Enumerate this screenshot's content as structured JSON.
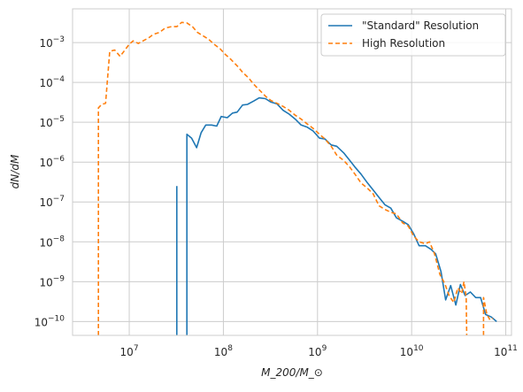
{
  "chart_data": {
    "type": "line",
    "title": "",
    "xlabel": "M_200/M_⊙",
    "ylabel": "dN/dM",
    "xscale": "log",
    "yscale": "log",
    "xlim": [
      2500000.0,
      115000000000.0
    ],
    "ylim": [
      4.5e-11,
      0.007
    ],
    "grid": true,
    "legend_position": "upper right",
    "x_ticks": [
      {
        "value": 10000000.0,
        "base": "10",
        "exp": "7"
      },
      {
        "value": 100000000.0,
        "base": "10",
        "exp": "8"
      },
      {
        "value": 1000000000.0,
        "base": "10",
        "exp": "9"
      },
      {
        "value": 10000000000.0,
        "base": "10",
        "exp": "10"
      },
      {
        "value": 100000000000.0,
        "base": "10",
        "exp": "11"
      }
    ],
    "y_ticks": [
      {
        "value": 1e-10,
        "base": "10",
        "exp": "−10"
      },
      {
        "value": 1e-09,
        "base": "10",
        "exp": "−9"
      },
      {
        "value": 1e-08,
        "base": "10",
        "exp": "−8"
      },
      {
        "value": 1e-07,
        "base": "10",
        "exp": "−7"
      },
      {
        "value": 1e-06,
        "base": "10",
        "exp": "−6"
      },
      {
        "value": 1e-05,
        "base": "10",
        "exp": "−5"
      },
      {
        "value": 0.0001,
        "base": "10",
        "exp": "−4"
      },
      {
        "value": 0.001,
        "base": "10",
        "exp": "−3"
      }
    ],
    "series": [
      {
        "name": "\"Standard\" Resolution",
        "color": "#1f77b4",
        "style": "solid",
        "segments": [
          [
            [
              32000000.0,
              4.5e-11
            ],
            [
              32000000.0,
              2.5e-07
            ]
          ],
          [
            [
              41000000.0,
              4.5e-11
            ],
            [
              41000000.0,
              5e-06
            ],
            [
              46000000.0,
              4e-06
            ],
            [
              52000000.0,
              2.3e-06
            ],
            [
              58000000.0,
              5.5e-06
            ],
            [
              65000000.0,
              8.5e-06
            ],
            [
              75000000.0,
              8.5e-06
            ],
            [
              85000000.0,
              8e-06
            ],
            [
              95000000.0,
              1.4e-05
            ],
            [
              110000000.0,
              1.3e-05
            ],
            [
              125000000.0,
              1.7e-05
            ],
            [
              140000000.0,
              1.8e-05
            ],
            [
              160000000.0,
              2.7e-05
            ],
            [
              180000000.0,
              2.8e-05
            ],
            [
              210000000.0,
              3.4e-05
            ],
            [
              240000000.0,
              4.1e-05
            ],
            [
              280000000.0,
              3.9e-05
            ],
            [
              320000000.0,
              3.2e-05
            ],
            [
              370000000.0,
              2.9e-05
            ],
            [
              430000000.0,
              2e-05
            ],
            [
              500000000.0,
              1.6e-05
            ],
            [
              580000000.0,
              1.2e-05
            ],
            [
              670000000.0,
              8.5e-06
            ],
            [
              780000000.0,
              7.5e-06
            ],
            [
              900000000.0,
              6e-06
            ],
            [
              1050000000.0,
              4e-06
            ],
            [
              1200000000.0,
              3.8e-06
            ],
            [
              1400000000.0,
              2.7e-06
            ],
            [
              1600000000.0,
              2.5e-06
            ],
            [
              1900000000.0,
              1.7e-06
            ],
            [
              2200000000.0,
              1.1e-06
            ],
            [
              2500000000.0,
              7.5e-07
            ],
            [
              2900000000.0,
              5e-07
            ],
            [
              3400000000.0,
              3e-07
            ],
            [
              3900000000.0,
              2e-07
            ],
            [
              4500000000.0,
              1.3e-07
            ],
            [
              5200000000.0,
              8.5e-08
            ],
            [
              6000000000.0,
              7e-08
            ],
            [
              6900000000.0,
              4e-08
            ],
            [
              8000000000.0,
              3.3e-08
            ],
            [
              9200000000.0,
              2.7e-08
            ],
            [
              10500000000.0,
              1.6e-08
            ],
            [
              12000000000.0,
              8e-09
            ],
            [
              14000000000.0,
              8e-09
            ],
            [
              16000000000.0,
              6.5e-09
            ],
            [
              18000000000.0,
              5e-09
            ],
            [
              20500000000.0,
              1.8e-09
            ],
            [
              23000000000.0,
              3.5e-10
            ],
            [
              26000000000.0,
              8e-10
            ],
            [
              29500000000.0,
              2.6e-10
            ],
            [
              33000000000.0,
              8.5e-10
            ],
            [
              37000000000.0,
              4.5e-10
            ],
            [
              42000000000.0,
              5.5e-10
            ],
            [
              48000000000.0,
              4e-10
            ],
            [
              54000000000.0,
              4e-10
            ],
            [
              61000000000.0,
              1.5e-10
            ],
            [
              70000000000.0,
              1.3e-10
            ],
            [
              80000000000.0,
              1e-10
            ]
          ]
        ]
      },
      {
        "name": "High Resolution",
        "color": "#ff7f0e",
        "style": "dashed",
        "segments": [
          [
            [
              4700000.0,
              4.5e-11
            ],
            [
              4700000.0,
              2.3e-05
            ],
            [
              5100000.0,
              2.8e-05
            ],
            [
              5600000.0,
              3e-05
            ],
            [
              6200000.0,
              0.0006
            ],
            [
              7000000.0,
              0.00065
            ],
            [
              8000000.0,
              0.00045
            ],
            [
              9000000.0,
              0.00065
            ],
            [
              10000000.0,
              0.0009
            ],
            [
              11000000.0,
              0.0011
            ],
            [
              12500000.0,
              0.00095
            ],
            [
              14000000.0,
              0.0011
            ],
            [
              16000000.0,
              0.0013
            ],
            [
              18000000.0,
              0.0016
            ],
            [
              21000000.0,
              0.0018
            ],
            [
              24000000.0,
              0.0023
            ],
            [
              28000000.0,
              0.0025
            ],
            [
              32000000.0,
              0.0025
            ],
            [
              36000000.0,
              0.0032
            ],
            [
              41000000.0,
              0.0031
            ],
            [
              47000000.0,
              0.0025
            ],
            [
              53000000.0,
              0.0018
            ],
            [
              60000000.0,
              0.0015
            ],
            [
              70000000.0,
              0.0012
            ],
            [
              80000000.0,
              0.0009
            ],
            [
              92000000.0,
              0.0007
            ],
            [
              105000000.0,
              0.0005
            ],
            [
              120000000.0,
              0.00038
            ],
            [
              140000000.0,
              0.00026
            ],
            [
              160000000.0,
              0.00018
            ],
            [
              185000000.0,
              0.00013
            ],
            [
              210000000.0,
              9e-05
            ],
            [
              240000000.0,
              6.5e-05
            ],
            [
              280000000.0,
              4.5e-05
            ],
            [
              320000000.0,
              3.5e-05
            ],
            [
              370000000.0,
              3e-05
            ],
            [
              430000000.0,
              2.5e-05
            ],
            [
              500000000.0,
              2e-05
            ],
            [
              580000000.0,
              1.5e-05
            ],
            [
              670000000.0,
              1.2e-05
            ],
            [
              780000000.0,
              9e-06
            ],
            [
              900000000.0,
              7e-06
            ],
            [
              1050000000.0,
              5e-06
            ],
            [
              1200000000.0,
              3.8e-06
            ],
            [
              1400000000.0,
              2.5e-06
            ],
            [
              1600000000.0,
              1.5e-06
            ],
            [
              1900000000.0,
              1.1e-06
            ],
            [
              2200000000.0,
              7.5e-07
            ],
            [
              2500000000.0,
              5e-07
            ],
            [
              2900000000.0,
              3e-07
            ],
            [
              3400000000.0,
              2.2e-07
            ],
            [
              3900000000.0,
              1.6e-07
            ],
            [
              4500000000.0,
              8e-08
            ],
            [
              5200000000.0,
              6.5e-08
            ],
            [
              6000000000.0,
              5.5e-08
            ],
            [
              6900000000.0,
              5e-08
            ],
            [
              8000000000.0,
              3e-08
            ],
            [
              9200000000.0,
              2.5e-08
            ],
            [
              10500000000.0,
              1.4e-08
            ],
            [
              12000000000.0,
              1e-08
            ],
            [
              14000000000.0,
              9e-09
            ],
            [
              15500000000.0,
              1e-08
            ],
            [
              17500000000.0,
              5e-09
            ],
            [
              20000000000.0,
              1.5e-09
            ],
            [
              22500000000.0,
              9e-10
            ],
            [
              25000000000.0,
              4.5e-10
            ],
            [
              28000000000.0,
              3e-10
            ],
            [
              31000000000.0,
              7e-10
            ],
            [
              34000000000.0,
              5e-10
            ],
            [
              36000000000.0,
              1e-09
            ],
            [
              38000000000.0,
              4e-10
            ],
            [
              38500000000.0,
              4.5e-11
            ]
          ],
          [
            [
              58000000000.0,
              4.5e-11
            ],
            [
              58000000000.0,
              4e-10
            ],
            [
              63000000000.0,
              1.5e-10
            ],
            [
              68000000000.0,
              1.1e-10
            ],
            [
              73000000000.0,
              1.2e-10
            ]
          ]
        ]
      }
    ]
  }
}
